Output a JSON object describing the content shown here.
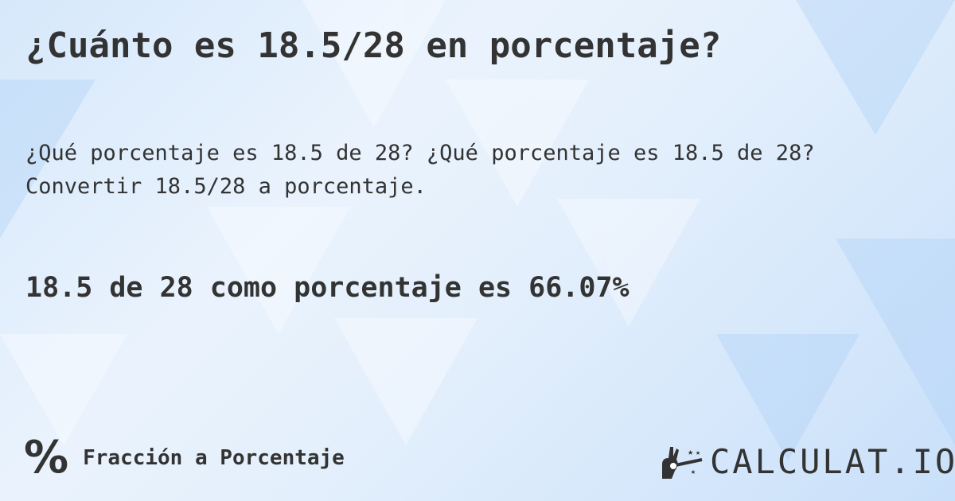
{
  "title": "¿Cuánto es 18.5/28 en porcentaje?",
  "description": "¿Qué porcentaje es 18.5 de 28? ¿Qué porcentaje es 18.5 de 28? Convertir 18.5/28 a porcentaje.",
  "answer": "18.5 de 28 como porcentaje es 66.07%",
  "footer": {
    "category_icon": "percent-icon",
    "category_symbol": "%",
    "category": "Fracción a Porcentaje"
  },
  "logo": {
    "text": "CALCULAT.IO",
    "icon": "magic-hand-icon"
  }
}
